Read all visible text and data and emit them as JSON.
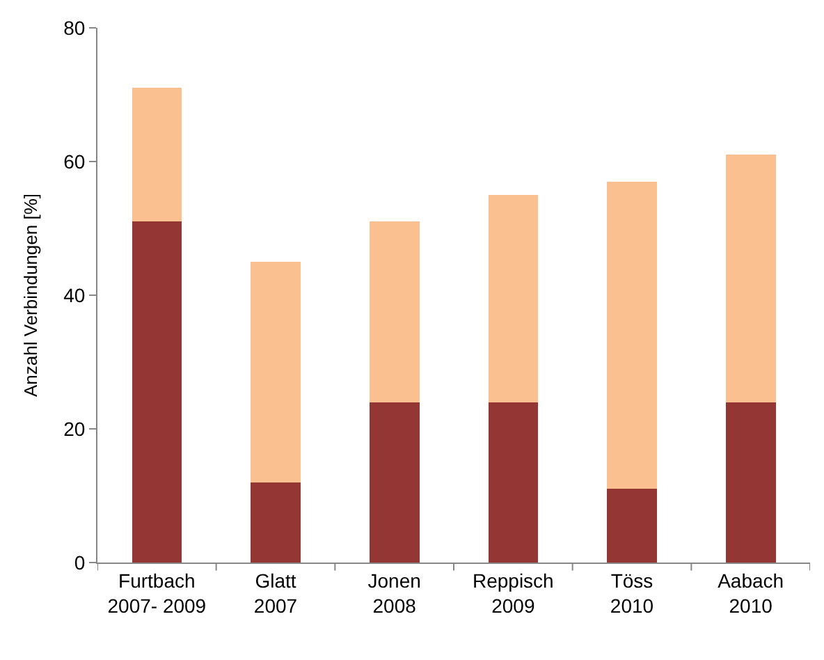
{
  "chart_data": {
    "type": "bar",
    "stacked": true,
    "ylabel": "Anzahl Verbindungen [%]",
    "categories": [
      "Furtbach\n2007- 2009",
      "Glatt\n2007",
      "Jonen\n2008",
      "Reppisch\n2009",
      "Töss\n2010",
      "Aabach\n2010"
    ],
    "series": [
      {
        "color": "#943634",
        "values": [
          51,
          12,
          24,
          24,
          11,
          24
        ]
      },
      {
        "color": "#fac090",
        "values": [
          20,
          33,
          27,
          31,
          46,
          37
        ]
      }
    ],
    "ylim": [
      0,
      80
    ],
    "yticks": [
      0,
      20,
      40,
      60,
      80
    ]
  }
}
